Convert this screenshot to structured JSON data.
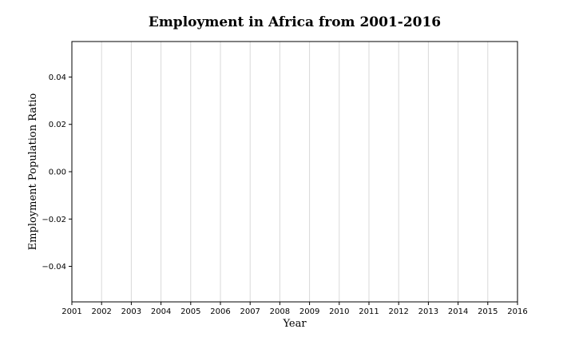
{
  "chart_data": {
    "type": "line",
    "title": "Employment in Africa from 2001-2016",
    "xlabel": "Year",
    "ylabel": "Employment Population Ratio",
    "x_ticks": [
      "2001",
      "2002",
      "2003",
      "2004",
      "2005",
      "2006",
      "2007",
      "2008",
      "2009",
      "2010",
      "2011",
      "2012",
      "2013",
      "2014",
      "2015",
      "2016"
    ],
    "xlim": [
      2001,
      2016
    ],
    "y_ticks": [
      0.04,
      0.02,
      0.0,
      -0.02,
      -0.04
    ],
    "y_tick_labels": [
      "0.04",
      "0.02",
      "0.00",
      "−0.02",
      "−0.04"
    ],
    "ylim": [
      -0.055,
      0.055
    ],
    "grid": "vertical",
    "series": []
  }
}
